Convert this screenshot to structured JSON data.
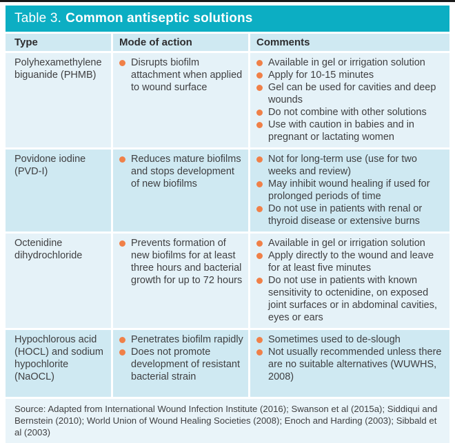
{
  "title": {
    "prefix": "Table 3.",
    "bold": "Common antiseptic solutions"
  },
  "columns": [
    "Type",
    "Mode of action",
    "Comments"
  ],
  "rows": [
    {
      "type": "Polyhexamethylene biguanide (PHMB)",
      "mode_of_action": [
        "Disrupts biofilm attachment when applied to wound surface"
      ],
      "comments": [
        "Available in gel or irrigation solution",
        "Apply for 10-15 minutes",
        "Gel can be used for cavities and deep wounds",
        "Do not combine with other solutions",
        "Use with caution in babies and in pregnant or lactating women"
      ]
    },
    {
      "type": "Povidone iodine (PVD-I)",
      "mode_of_action": [
        "Reduces mature biofilms and stops development of new biofilms"
      ],
      "comments": [
        "Not for long-term use (use for two weeks and review)",
        "May inhibit wound healing if used for prolonged periods of time",
        "Do not use in patients with renal or thyroid disease or extensive burns"
      ]
    },
    {
      "type": "Octenidine dihydrochloride",
      "mode_of_action": [
        "Prevents formation of new biofilms for at least three hours and bacterial growth for up to 72 hours"
      ],
      "comments": [
        "Available in gel or irrigation solution",
        "Apply directly to the wound and leave for at least five minutes",
        "Do not use in patients with known sensitivity to octenidine, on exposed joint surfaces or in abdominal cavities, eyes or ears"
      ]
    },
    {
      "type": "Hypochlorous acid (HOCL) and sodium hypochlorite (NaOCL)",
      "mode_of_action": [
        "Penetrates biofilm rapidly",
        "Does not promote development of resistant bacterial strain"
      ],
      "comments": [
        "Sometimes used to de-slough",
        "Not usually recommended unless there are no suitable alternatives (WUWHS, 2008)"
      ]
    }
  ],
  "source": "Source: Adapted from International Wound Infection Institute (2016); Swanson et al (2015a); Siddiqui and Bernstein (2010); World Union of Wound Healing Societies (2008); Enoch and Harding (2003); Sibbald et al (2003)",
  "colors": {
    "teal": "#0caec3",
    "header_blue": "#cfe9f2",
    "row_light": "#e5f2f8",
    "row_dark": "#cfe9f2",
    "footer_blue": "#e9f4f9",
    "orange": "#f08048",
    "text_dark": "#3f3f41",
    "rule_black": "#1a1a1a"
  }
}
